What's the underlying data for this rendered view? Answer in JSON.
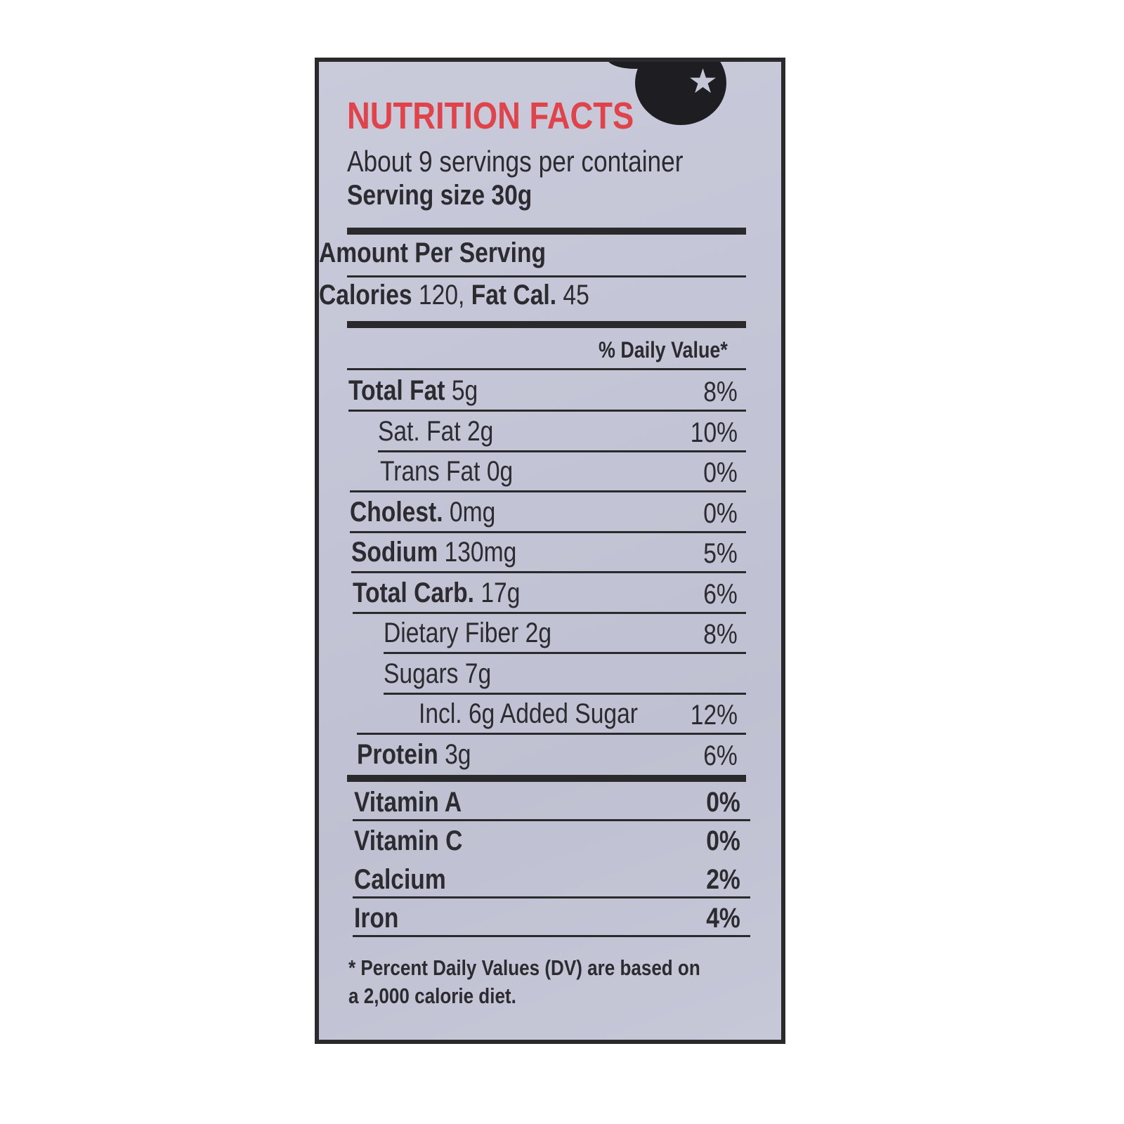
{
  "title": "NUTRITION FACTS",
  "servings": "About 9 servings per container",
  "serving_size": "Serving size 30g",
  "amount_per_serving": "Amount Per Serving",
  "calories_label": "Calories",
  "calories_value": "120,",
  "fat_cal_label": "Fat Cal.",
  "fat_cal_value": "45",
  "dv_header": "% Daily Value*",
  "rows": [
    {
      "bold": "Total Fat",
      "value": "5g",
      "dv": "8%"
    },
    {
      "bold": "",
      "value": "Sat. Fat 2g",
      "dv": "10%"
    },
    {
      "bold": "",
      "value": "Trans Fat 0g",
      "dv": "0%"
    },
    {
      "bold": "Cholest.",
      "value": "0mg",
      "dv": "0%"
    },
    {
      "bold": "Sodium",
      "value": "130mg",
      "dv": "5%"
    },
    {
      "bold": "Total Carb.",
      "value": "17g",
      "dv": "6%"
    },
    {
      "bold": "",
      "value": "Dietary Fiber 2g",
      "dv": "8%"
    },
    {
      "bold": "",
      "value": "Sugars 7g",
      "dv": ""
    },
    {
      "bold": "",
      "value": "Incl. 6g Added Sugar",
      "dv": "12%"
    },
    {
      "bold": "Protein",
      "value": "3g",
      "dv": "6%"
    }
  ],
  "vitamins": [
    {
      "name": "Vitamin A",
      "dv": "0%"
    },
    {
      "name": "Vitamin C",
      "dv": "0%"
    },
    {
      "name": "Calcium",
      "dv": "2%"
    },
    {
      "name": "Iron",
      "dv": "4%"
    }
  ],
  "footnote_line1": "* Percent Daily Values (DV) are based on",
  "footnote_line2": "a 2,000 calorie diet.",
  "colors": {
    "title": "#e0434a",
    "text": "#2b2b30",
    "background": "#c4c6d6",
    "border": "#2a2a2c"
  }
}
